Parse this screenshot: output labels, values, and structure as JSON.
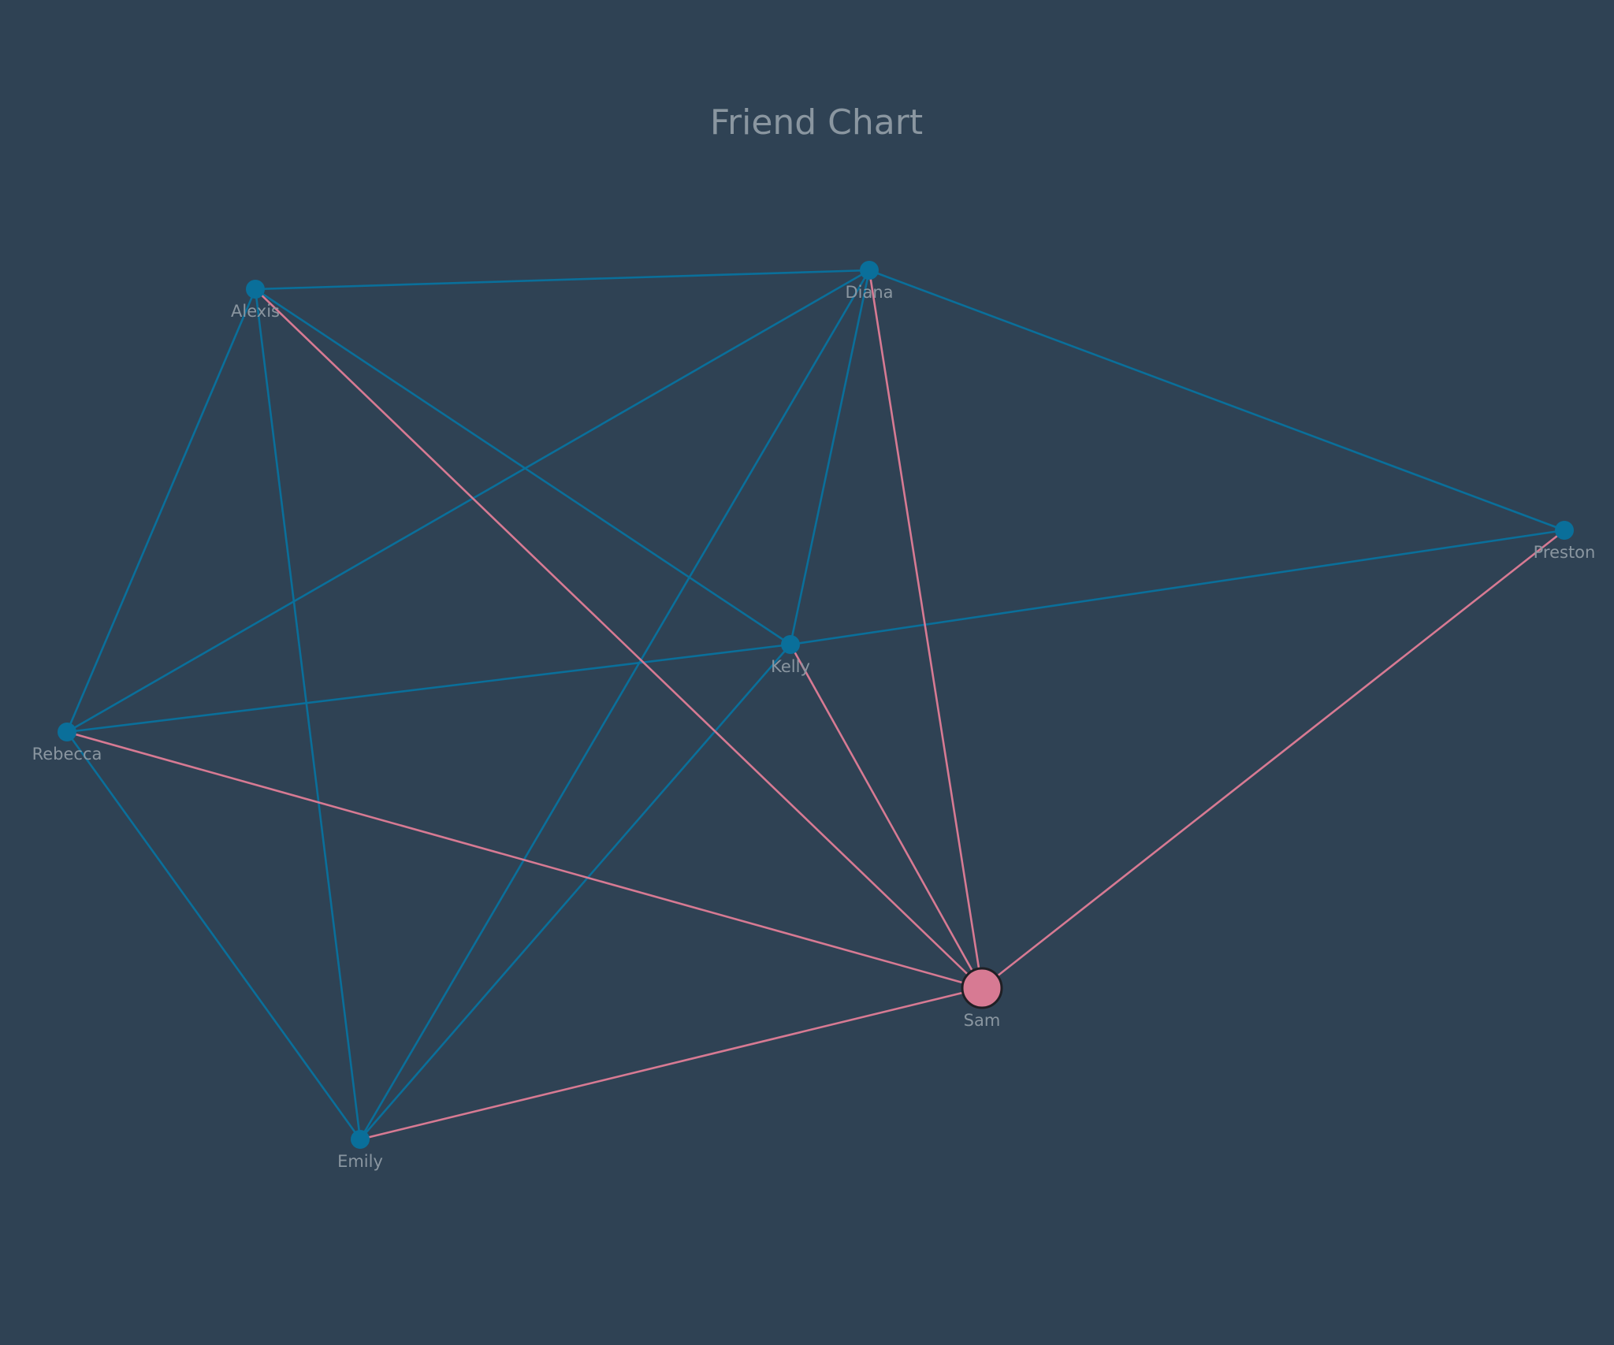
{
  "title": "Friend Chart",
  "colors": {
    "background": "#2f4254",
    "edge_default": "#0a6f9a",
    "edge_focus": "#d77a93",
    "node_default": "#0a6f9a",
    "node_focus": "#d77a93",
    "focus_stroke": "#1f1f24",
    "label": "#8a96a0"
  },
  "graph": {
    "focus": "Sam",
    "nodes": [
      {
        "id": "alexis",
        "label": "Alexis"
      },
      {
        "id": "diana",
        "label": "Diana"
      },
      {
        "id": "preston",
        "label": "Preston"
      },
      {
        "id": "kelly",
        "label": "Kelly"
      },
      {
        "id": "rebecca",
        "label": "Rebecca"
      },
      {
        "id": "sam",
        "label": "Sam"
      },
      {
        "id": "emily",
        "label": "Emily"
      }
    ],
    "edges": [
      [
        "alexis",
        "diana"
      ],
      [
        "alexis",
        "rebecca"
      ],
      [
        "alexis",
        "emily"
      ],
      [
        "alexis",
        "kelly"
      ],
      [
        "diana",
        "preston"
      ],
      [
        "diana",
        "rebecca"
      ],
      [
        "diana",
        "emily"
      ],
      [
        "diana",
        "kelly"
      ],
      [
        "preston",
        "kelly"
      ],
      [
        "kelly",
        "rebecca"
      ],
      [
        "kelly",
        "emily"
      ],
      [
        "rebecca",
        "emily"
      ],
      [
        "alexis",
        "sam"
      ],
      [
        "diana",
        "sam"
      ],
      [
        "preston",
        "sam"
      ],
      [
        "kelly",
        "sam"
      ],
      [
        "rebecca",
        "sam"
      ],
      [
        "emily",
        "sam"
      ]
    ]
  }
}
